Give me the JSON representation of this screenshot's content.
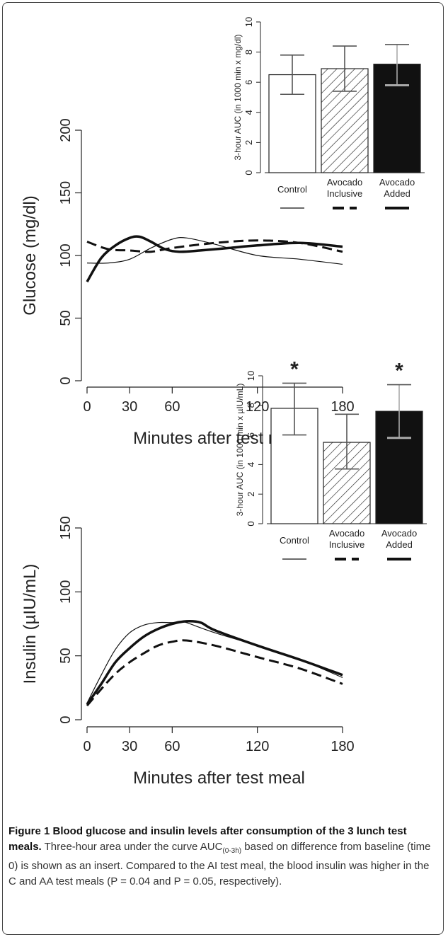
{
  "chart_data": [
    {
      "type": "line",
      "xlabel": "Minutes after test meal",
      "ylabel": "Glucose (mg/dl)",
      "xlim": [
        0,
        180
      ],
      "ylim": [
        0,
        200
      ],
      "xticks": [
        0,
        30,
        60,
        120,
        180
      ],
      "yticks": [
        0,
        50,
        100,
        150,
        200
      ],
      "series": [
        {
          "style": "thin-solid",
          "x": [
            0,
            15,
            30,
            45,
            60,
            70,
            90,
            120,
            150,
            180
          ],
          "y": [
            94,
            94,
            97,
            106,
            113,
            114,
            109,
            100,
            97,
            93
          ]
        },
        {
          "style": "dashed",
          "x": [
            0,
            15,
            30,
            45,
            60,
            90,
            120,
            150,
            180
          ],
          "y": [
            111,
            105,
            104,
            103,
            106,
            110,
            112,
            110,
            103
          ]
        },
        {
          "style": "thick-solid",
          "x": [
            0,
            10,
            20,
            30,
            37,
            45,
            55,
            65,
            80,
            100,
            120,
            150,
            180
          ],
          "y": [
            79,
            98,
            108,
            114,
            115,
            111,
            105,
            103,
            104,
            106,
            108,
            110,
            107
          ]
        }
      ]
    },
    {
      "type": "bar",
      "ylabel": "3-hour AUC (in 1000 min x mg/dl)",
      "ylim": [
        0,
        10
      ],
      "yticks": [
        0,
        2,
        4,
        6,
        8,
        10
      ],
      "categories": [
        "Control",
        "Avocado Inclusive",
        "Avocado Added"
      ],
      "values": [
        6.5,
        6.9,
        7.2
      ],
      "errors": [
        [
          5.2,
          7.8
        ],
        [
          5.4,
          8.4
        ],
        [
          5.8,
          8.5
        ]
      ],
      "fills": [
        "white",
        "hatched",
        "black"
      ]
    },
    {
      "type": "line",
      "xlabel": "Minutes after test meal",
      "ylabel": "Insulin (µIU/mL)",
      "xlim": [
        0,
        180
      ],
      "ylim": [
        0,
        150
      ],
      "xticks": [
        0,
        30,
        60,
        120,
        180
      ],
      "yticks": [
        0,
        50,
        100,
        150
      ],
      "series": [
        {
          "style": "thin-solid",
          "x": [
            0,
            10,
            20,
            30,
            40,
            50,
            60,
            65,
            70,
            90,
            120,
            150,
            180
          ],
          "y": [
            13,
            35,
            55,
            68,
            74,
            76,
            76,
            77,
            76,
            68,
            58,
            47,
            33
          ]
        },
        {
          "style": "dashed",
          "x": [
            0,
            10,
            20,
            30,
            40,
            50,
            60,
            70,
            90,
            120,
            150,
            180
          ],
          "y": [
            11,
            24,
            36,
            45,
            52,
            58,
            61,
            62,
            58,
            49,
            40,
            28
          ]
        },
        {
          "style": "thick-solid",
          "x": [
            0,
            10,
            20,
            30,
            40,
            50,
            60,
            70,
            80,
            90,
            120,
            150,
            180
          ],
          "y": [
            12,
            28,
            45,
            56,
            65,
            71,
            75,
            77,
            76,
            70,
            58,
            47,
            35
          ]
        }
      ]
    },
    {
      "type": "bar",
      "ylabel": "3-hour AUC (in 1000 min x µIU/mL)",
      "ylim": [
        0,
        10
      ],
      "yticks": [
        0,
        2,
        4,
        6,
        8,
        10
      ],
      "categories": [
        "Control",
        "Avocado Inclusive",
        "Avocado Added"
      ],
      "values": [
        7.8,
        5.5,
        7.6
      ],
      "errors": [
        [
          6.0,
          9.5
        ],
        [
          3.7,
          7.4
        ],
        [
          5.8,
          9.4
        ]
      ],
      "fills": [
        "white",
        "hatched",
        "black"
      ],
      "annotations": [
        "*",
        "",
        "*"
      ]
    }
  ],
  "caption": {
    "title": "Figure 1 Blood glucose and insulin levels after consumption of the 3 lunch test meals.",
    "text_a": " Three-hour area under the curve AUC",
    "sub": "(0-3h)",
    "text_b": " based on difference from baseline (time 0) is shown as an insert. Compared to the AI test meal, the blood insulin was higher in the C and AA test meals (P = 0.04 and P = 0.05, respectively)."
  }
}
